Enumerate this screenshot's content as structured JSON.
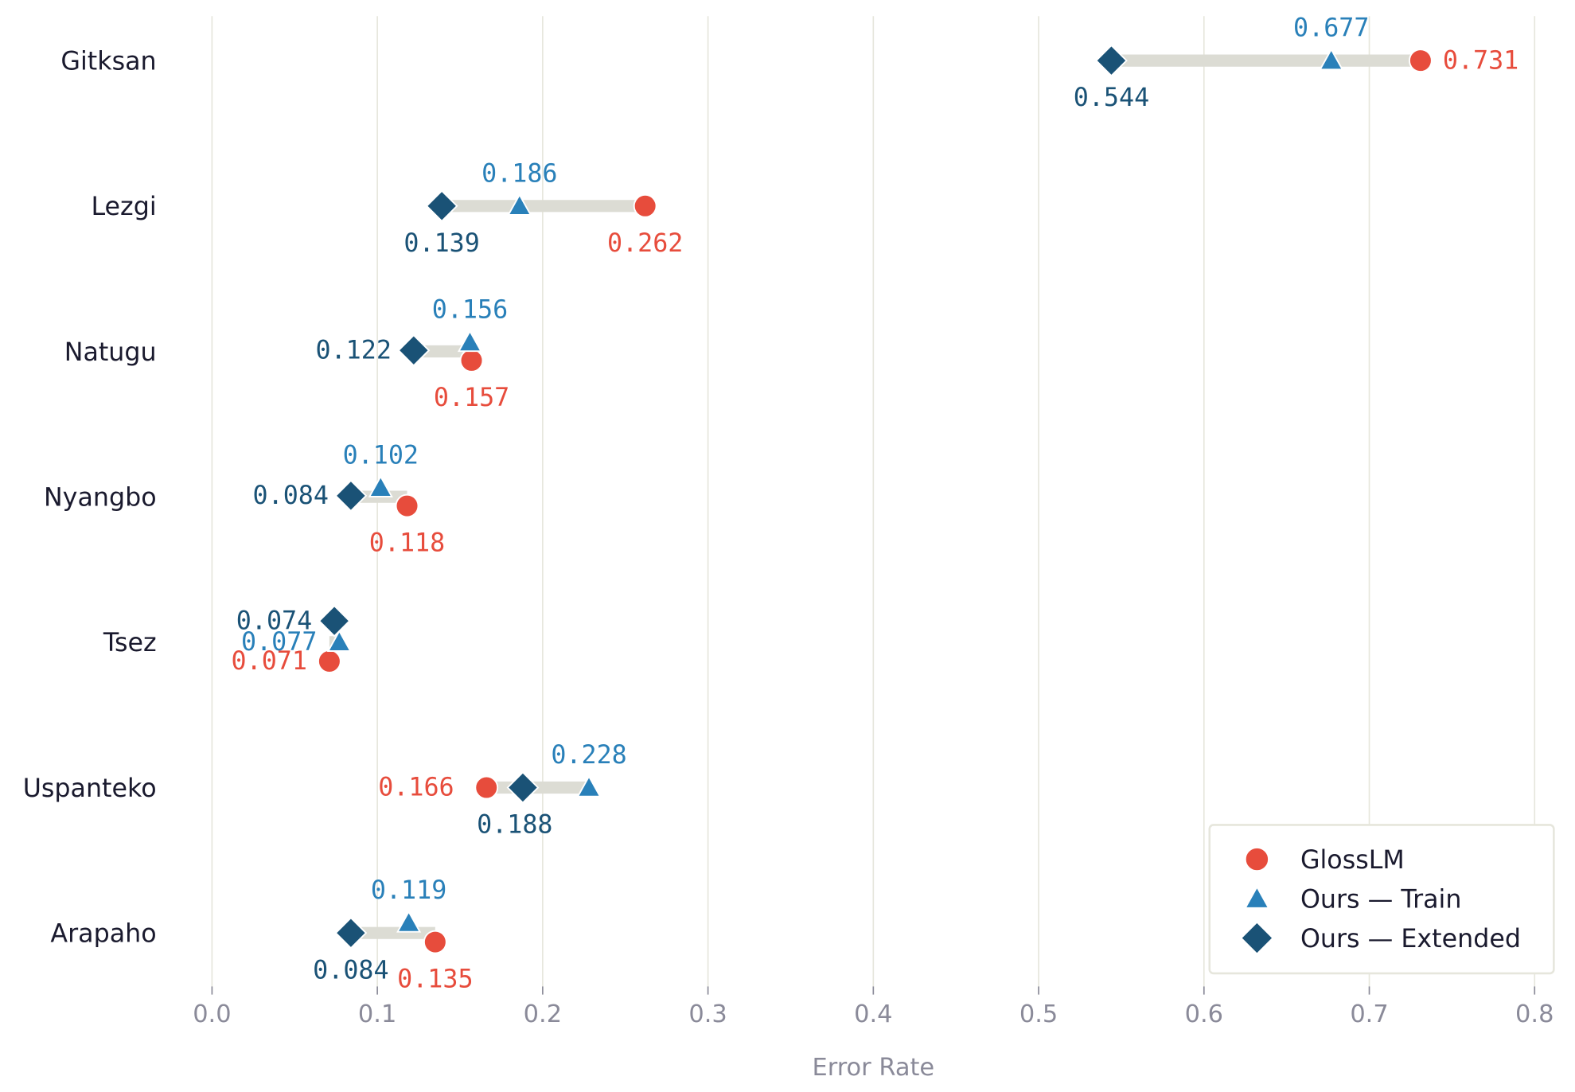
{
  "chart_data": {
    "type": "dot-range",
    "title": "",
    "xlabel": "Error Rate",
    "ylabel": "",
    "xlim": [
      0.0,
      0.8
    ],
    "xticks": [
      "0.0",
      "0.1",
      "0.2",
      "0.3",
      "0.4",
      "0.5",
      "0.6",
      "0.7",
      "0.8"
    ],
    "grid": "vertical",
    "legend_position": "bottom-right",
    "categories": [
      "Gitksan",
      "Lezgi",
      "Natugu",
      "Nyangbo",
      "Tsez",
      "Uspanteko",
      "Arapaho"
    ],
    "series": [
      {
        "name": "GlossLM",
        "marker": "circle",
        "color": "#e74c3c",
        "values": [
          0.731,
          0.262,
          0.157,
          0.118,
          0.071,
          0.166,
          0.135
        ]
      },
      {
        "name": "Ours — Train",
        "marker": "triangle",
        "color": "#2980b9",
        "values": [
          0.677,
          0.186,
          0.156,
          0.102,
          0.077,
          0.228,
          0.119
        ]
      },
      {
        "name": "Ours — Extended",
        "marker": "diamond",
        "color": "#1a5276",
        "values": [
          0.544,
          0.139,
          0.122,
          0.084,
          0.074,
          0.188,
          0.084
        ]
      }
    ],
    "range_bar_color": "#dcdcd4",
    "grid_color": "#e6e6dc"
  }
}
